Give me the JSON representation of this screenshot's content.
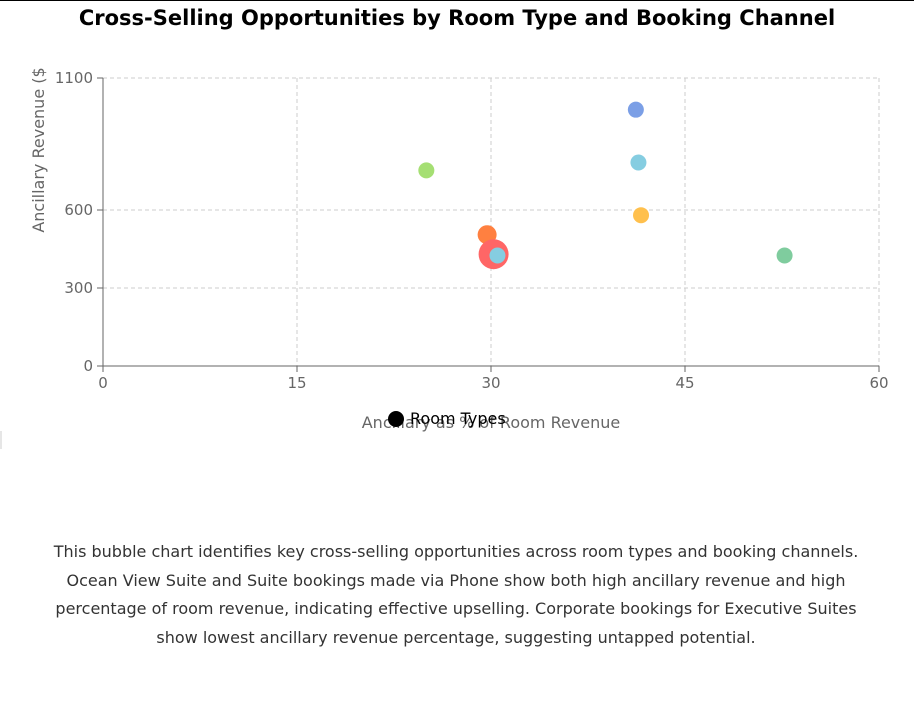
{
  "title": "Cross-Selling Opportunities by Room Type and Booking Channel",
  "chart_data": {
    "type": "scatter",
    "title": "Cross-Selling Opportunities by Room Type and Booking Channel",
    "xlabel": "Ancillary as % of Room Revenue",
    "ylabel": "Ancillary Revenue ($",
    "xlim": [
      0,
      60
    ],
    "ylim": [
      0,
      1100
    ],
    "x_ticks": [
      0,
      15,
      30,
      45,
      60
    ],
    "y_ticks": [
      0,
      300,
      600,
      1100
    ],
    "grid": true,
    "legend": {
      "position": "bottom",
      "entries": [
        "Room Types"
      ]
    },
    "points": [
      {
        "x": 41.2,
        "y": 980,
        "color": "#7b9fe6"
      },
      {
        "x": 41.4,
        "y": 780,
        "color": "#85cde1"
      },
      {
        "x": 25.0,
        "y": 750,
        "color": "#a5df73"
      },
      {
        "x": 41.6,
        "y": 580,
        "color": "#ffc04d"
      },
      {
        "x": 29.7,
        "y": 505,
        "color": "#ff8040"
      },
      {
        "x": 30.2,
        "y": 430,
        "color": "#ff6666"
      },
      {
        "x": 30.5,
        "y": 425,
        "color": "#85cde1"
      },
      {
        "x": 52.7,
        "y": 425,
        "color": "#7fcc9e"
      }
    ]
  },
  "caption": "This bubble chart identifies key cross-selling opportunities across room types and booking channels. Ocean View Suite and Suite bookings made via Phone show both high ancillary revenue and high percentage of room revenue, indicating effective upselling. Corporate bookings for Executive Suites show lowest ancillary revenue percentage, suggesting untapped potential."
}
